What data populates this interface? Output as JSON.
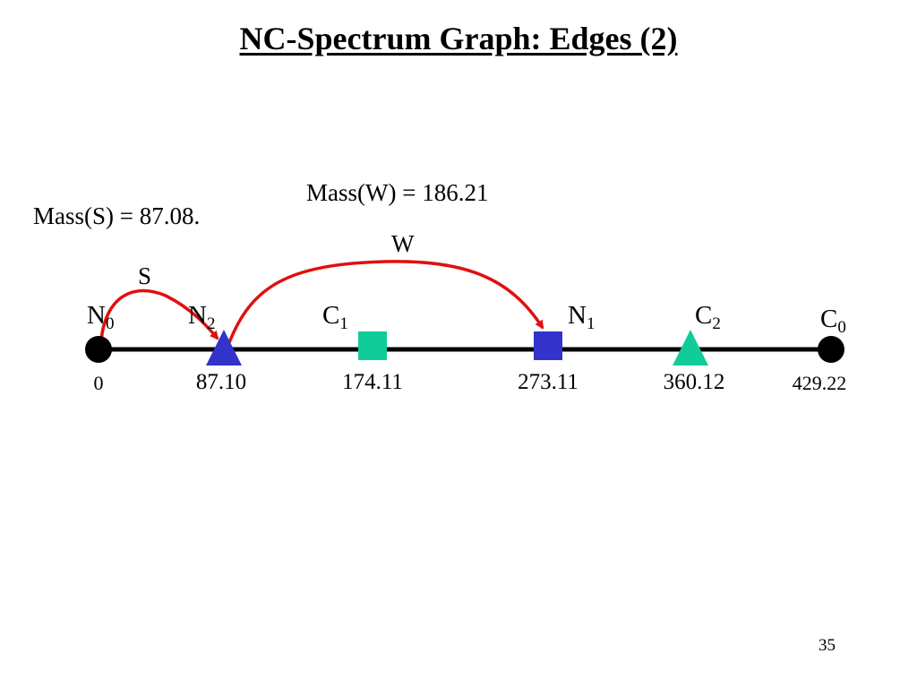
{
  "slide": {
    "title": "NC-Spectrum Graph: Edges (2)",
    "page_number": "35"
  },
  "annotations": {
    "mass_s": "Mass(S) = 87.08.",
    "mass_w": "Mass(W) = 186.21"
  },
  "edges": [
    {
      "label": "S",
      "from": "N0",
      "to": "N2",
      "color": "#e01010"
    },
    {
      "label": "W",
      "from": "N2",
      "to": "N1",
      "color": "#e01010"
    }
  ],
  "nodes": [
    {
      "id": "N0",
      "base": "N",
      "sub": "0",
      "value": "0",
      "mass": 0,
      "shape": "circle",
      "color": "#000000"
    },
    {
      "id": "N2",
      "base": "N",
      "sub": "2",
      "value": "87.10",
      "mass": 87.1,
      "shape": "triangle",
      "color": "#3333cc"
    },
    {
      "id": "C1",
      "base": "C",
      "sub": "1",
      "value": "174.11",
      "mass": 174.11,
      "shape": "square",
      "color": "#11cc99"
    },
    {
      "id": "N1",
      "base": "N",
      "sub": "1",
      "value": "273.11",
      "mass": 273.11,
      "shape": "square",
      "color": "#3333cc"
    },
    {
      "id": "C2",
      "base": "C",
      "sub": "2",
      "value": "360.12",
      "mass": 360.12,
      "shape": "triangle",
      "color": "#11cc99"
    },
    {
      "id": "C0",
      "base": "C",
      "sub": "0",
      "value": "429.22",
      "mass": 429.22,
      "shape": "circle",
      "color": "#000000"
    }
  ]
}
